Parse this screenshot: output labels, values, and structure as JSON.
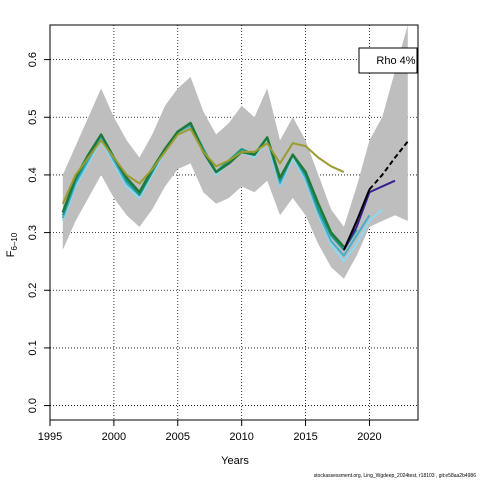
{
  "chart_data": {
    "type": "line",
    "xlabel": "Years",
    "ylabel": "F",
    "ylabel_subscript": "6–10",
    "xlim": [
      1995,
      2023.8
    ],
    "ylim": [
      -0.025,
      0.66
    ],
    "xticks": [
      1995,
      2000,
      2005,
      2010,
      2015,
      2020
    ],
    "yticks": [
      0.0,
      0.1,
      0.2,
      0.3,
      0.4,
      0.5,
      0.6
    ],
    "grid": true,
    "legend": {
      "position": "top-right",
      "label": "Rho 4%"
    },
    "footer": "stockassessment.org, Ling_Wgdeep_2024test, r18103 , git:e58aa2b4986",
    "colors": {
      "band": "#bebebe",
      "retro_light": "#8fd8ef",
      "retro_mid": "#46aec8",
      "teal": "#1a9a8a",
      "green": "#1f7a3a",
      "olive": "#9b9b2f",
      "purple": "#3a1f8f",
      "black": "#000000"
    },
    "band": {
      "x": [
        1996,
        1997,
        1998,
        1999,
        2000,
        2001,
        2002,
        2003,
        2004,
        2005,
        2006,
        2007,
        2008,
        2009,
        2010,
        2011,
        2012,
        2013,
        2014,
        2015,
        2016,
        2017,
        2018,
        2019,
        2020,
        2021,
        2022,
        2023
      ],
      "upper": [
        0.4,
        0.45,
        0.5,
        0.55,
        0.5,
        0.46,
        0.43,
        0.47,
        0.52,
        0.55,
        0.57,
        0.51,
        0.47,
        0.49,
        0.52,
        0.5,
        0.55,
        0.46,
        0.5,
        0.46,
        0.4,
        0.34,
        0.31,
        0.38,
        0.46,
        0.5,
        0.58,
        0.66
      ],
      "lower": [
        0.27,
        0.32,
        0.36,
        0.4,
        0.36,
        0.33,
        0.31,
        0.34,
        0.38,
        0.41,
        0.42,
        0.37,
        0.35,
        0.36,
        0.38,
        0.37,
        0.39,
        0.33,
        0.36,
        0.33,
        0.28,
        0.24,
        0.22,
        0.26,
        0.31,
        0.32,
        0.33,
        0.32
      ]
    },
    "series": [
      {
        "id": "retro-light",
        "color": "retro_light",
        "width": 2,
        "x": [
          1996,
          1997,
          1998,
          1999,
          2000,
          2001,
          2002,
          2003,
          2004,
          2005,
          2006,
          2007,
          2008,
          2009,
          2010,
          2011,
          2012,
          2013,
          2014,
          2015,
          2016,
          2017,
          2018,
          2019,
          2020,
          2021
        ],
        "y": [
          0.32,
          0.38,
          0.42,
          0.46,
          0.42,
          0.38,
          0.36,
          0.4,
          0.44,
          0.47,
          0.48,
          0.44,
          0.4,
          0.42,
          0.44,
          0.43,
          0.46,
          0.38,
          0.43,
          0.39,
          0.33,
          0.28,
          0.25,
          0.28,
          0.32,
          0.34
        ]
      },
      {
        "id": "retro-mid",
        "color": "retro_mid",
        "width": 2,
        "x": [
          1996,
          1997,
          1998,
          1999,
          2000,
          2001,
          2002,
          2003,
          2004,
          2005,
          2006,
          2007,
          2008,
          2009,
          2010,
          2011,
          2012,
          2013,
          2014,
          2015,
          2016,
          2017,
          2018,
          2019,
          2020
        ],
        "y": [
          0.325,
          0.385,
          0.425,
          0.465,
          0.425,
          0.385,
          0.365,
          0.405,
          0.445,
          0.475,
          0.485,
          0.445,
          0.405,
          0.425,
          0.445,
          0.435,
          0.465,
          0.385,
          0.435,
          0.395,
          0.335,
          0.285,
          0.26,
          0.295,
          0.33
        ]
      },
      {
        "id": "teal",
        "color": "teal",
        "width": 2,
        "x": [
          1996,
          1997,
          1998,
          1999,
          2000,
          2001,
          2002,
          2003,
          2004,
          2005,
          2006,
          2007,
          2008,
          2009,
          2010,
          2011,
          2012,
          2013,
          2014,
          2015,
          2016,
          2017,
          2018,
          2019
        ],
        "y": [
          0.33,
          0.39,
          0.43,
          0.47,
          0.43,
          0.39,
          0.365,
          0.405,
          0.445,
          0.475,
          0.49,
          0.445,
          0.405,
          0.425,
          0.445,
          0.435,
          0.465,
          0.39,
          0.435,
          0.4,
          0.34,
          0.295,
          0.27,
          0.305
        ]
      },
      {
        "id": "green",
        "color": "green",
        "width": 2.5,
        "x": [
          1996,
          1997,
          1998,
          1999,
          2000,
          2001,
          2002,
          2003,
          2004,
          2005,
          2006,
          2007,
          2008,
          2009,
          2010,
          2011,
          2012,
          2013,
          2014,
          2015,
          2016,
          2017,
          2018
        ],
        "y": [
          0.335,
          0.395,
          0.435,
          0.47,
          0.43,
          0.395,
          0.37,
          0.41,
          0.445,
          0.475,
          0.49,
          0.44,
          0.405,
          0.42,
          0.44,
          0.435,
          0.465,
          0.395,
          0.435,
          0.405,
          0.35,
          0.3,
          0.275
        ]
      },
      {
        "id": "olive",
        "color": "olive",
        "width": 2,
        "x": [
          1996,
          1997,
          1998,
          1999,
          2000,
          2001,
          2002,
          2003,
          2004,
          2005,
          2006,
          2007,
          2008,
          2009,
          2010,
          2011,
          2012,
          2013,
          2014,
          2015,
          2016,
          2017,
          2018
        ],
        "y": [
          0.35,
          0.4,
          0.43,
          0.46,
          0.43,
          0.4,
          0.385,
          0.41,
          0.44,
          0.47,
          0.48,
          0.44,
          0.415,
          0.425,
          0.44,
          0.44,
          0.455,
          0.42,
          0.455,
          0.45,
          0.43,
          0.415,
          0.405
        ]
      },
      {
        "id": "purple",
        "color": "purple",
        "width": 2,
        "x": [
          2018,
          2019,
          2020,
          2021,
          2022
        ],
        "y": [
          0.27,
          0.31,
          0.37,
          0.38,
          0.39
        ]
      },
      {
        "id": "black-solid",
        "color": "black",
        "width": 2,
        "x": [
          2018,
          2019,
          2020
        ],
        "y": [
          0.27,
          0.32,
          0.375
        ]
      },
      {
        "id": "black-dashed",
        "color": "black",
        "width": 2,
        "dashed": true,
        "x": [
          2020,
          2021,
          2022,
          2023
        ],
        "y": [
          0.375,
          0.4,
          0.43,
          0.458
        ]
      }
    ]
  }
}
